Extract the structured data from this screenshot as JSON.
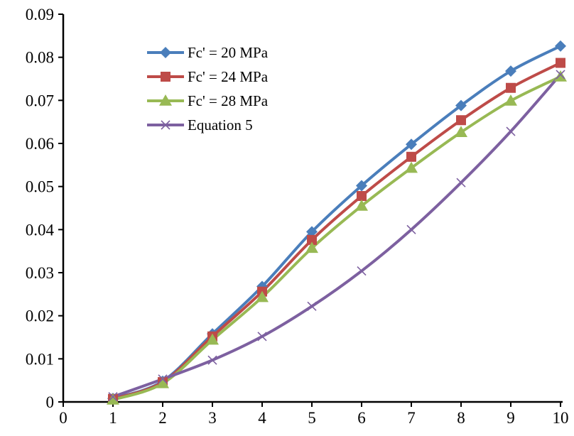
{
  "chart_data": {
    "type": "line",
    "title": "",
    "xlabel": "",
    "ylabel": "",
    "xlim": [
      0,
      10
    ],
    "ylim": [
      0,
      0.09
    ],
    "x_ticks": [
      "0",
      "1",
      "2",
      "3",
      "4",
      "5",
      "6",
      "7",
      "8",
      "9",
      "10"
    ],
    "y_ticks": [
      "0",
      "0.01",
      "0.02",
      "0.03",
      "0.04",
      "0.05",
      "0.06",
      "0.07",
      "0.08",
      "0.09"
    ],
    "x": [
      1,
      2,
      3,
      4,
      5,
      6,
      7,
      8,
      9,
      10
    ],
    "grid": false,
    "legend_position": "top-left",
    "series": [
      {
        "name": "Fc' = 20 MPa",
        "color": "#4a7ebb",
        "marker": "diamond",
        "values": [
          0.0008,
          0.0048,
          0.0158,
          0.0268,
          0.0395,
          0.0502,
          0.0598,
          0.0688,
          0.0768,
          0.0826
        ]
      },
      {
        "name": "Fc' = 24 MPa",
        "color": "#be4b48",
        "marker": "square",
        "values": [
          0.0007,
          0.0046,
          0.0152,
          0.0256,
          0.0376,
          0.0478,
          0.0569,
          0.0654,
          0.0729,
          0.0787
        ]
      },
      {
        "name": "Fc' = 28 MPa",
        "color": "#98b954",
        "marker": "triangle",
        "values": [
          0.0005,
          0.0043,
          0.0144,
          0.0243,
          0.0357,
          0.0455,
          0.0543,
          0.0626,
          0.0699,
          0.0755
        ]
      },
      {
        "name": "Equation 5",
        "color": "#7d60a0",
        "marker": "x",
        "values": [
          0.0012,
          0.0053,
          0.0097,
          0.0152,
          0.0222,
          0.0304,
          0.04,
          0.0509,
          0.0628,
          0.076
        ]
      }
    ]
  }
}
